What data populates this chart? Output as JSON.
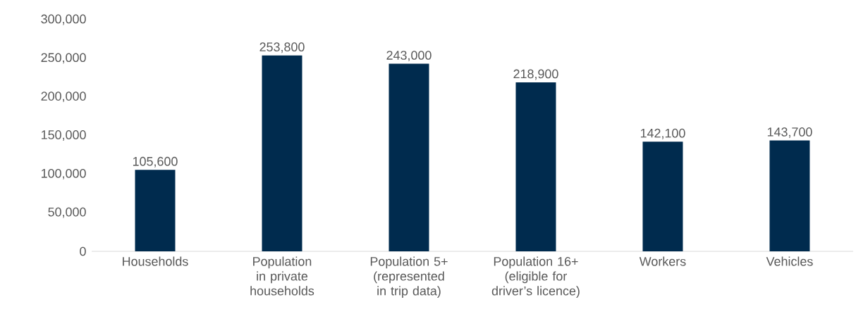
{
  "chart_data": {
    "type": "bar",
    "categories": [
      "Households",
      "Population in private households",
      "Population 5+ (represented in trip data)",
      "Population 16+ (eligible for driver’s licence)",
      "Workers",
      "Vehicles"
    ],
    "values": [
      105600,
      253800,
      243000,
      218900,
      142100,
      143700
    ],
    "value_labels": [
      "105,600",
      "253,800",
      "243,000",
      "218,900",
      "142,100",
      "143,700"
    ],
    "color": "#002b4e",
    "grid": false,
    "ylim": [
      0,
      300000
    ],
    "yticks": [
      {
        "value": 0,
        "label": "0"
      },
      {
        "value": 50000,
        "label": "50,000"
      },
      {
        "value": 100000,
        "label": "100,000"
      },
      {
        "value": 150000,
        "label": "150,000"
      },
      {
        "value": 200000,
        "label": "200,000"
      },
      {
        "value": 250000,
        "label": "250,000"
      },
      {
        "value": 300000,
        "label": "300,000"
      }
    ]
  }
}
